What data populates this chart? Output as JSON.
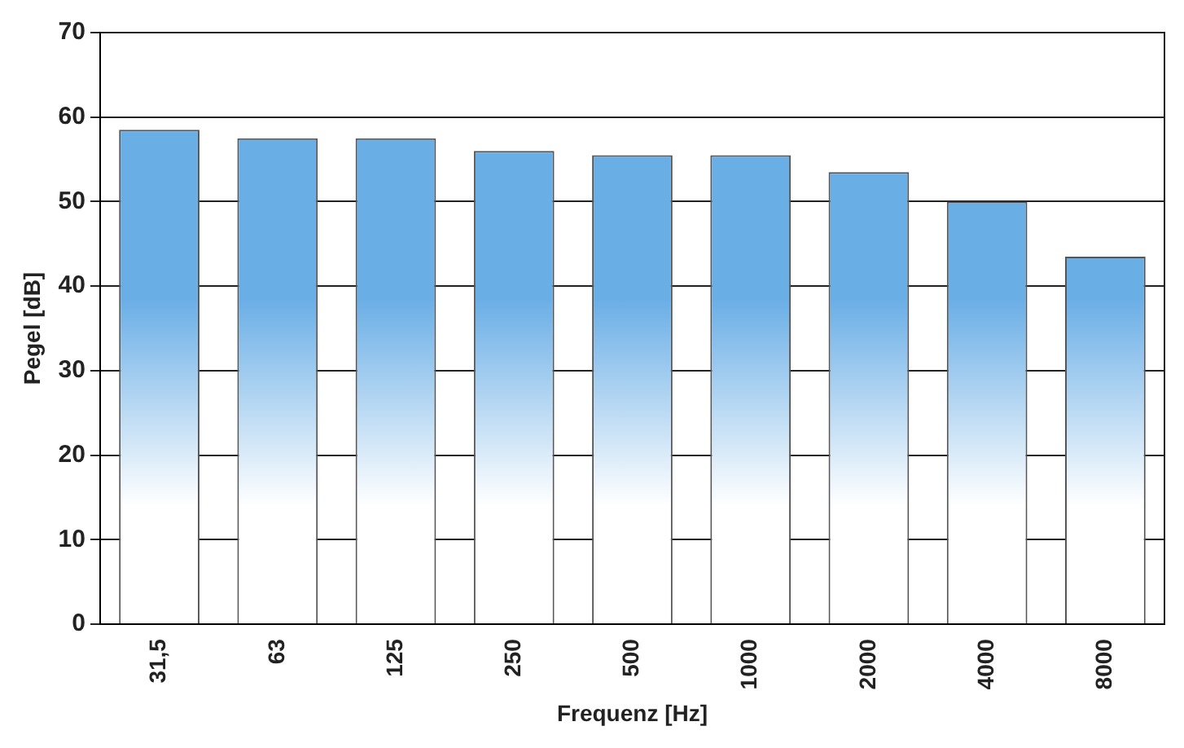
{
  "chart_data": {
    "type": "bar",
    "xlabel": "Frequenz [Hz]",
    "ylabel": "Pegel [dB]",
    "categories": [
      "31,5",
      "63",
      "125",
      "250",
      "500",
      "1000",
      "2000",
      "4000",
      "8000"
    ],
    "values": [
      58.5,
      57.5,
      57.5,
      56,
      55.5,
      55.5,
      53.5,
      50,
      43.5
    ],
    "color": "#6aaee6",
    "ylim": [
      0,
      70
    ],
    "yticks": [
      0,
      10,
      20,
      30,
      40,
      50,
      60,
      70
    ],
    "grid": "y",
    "legend": false
  }
}
